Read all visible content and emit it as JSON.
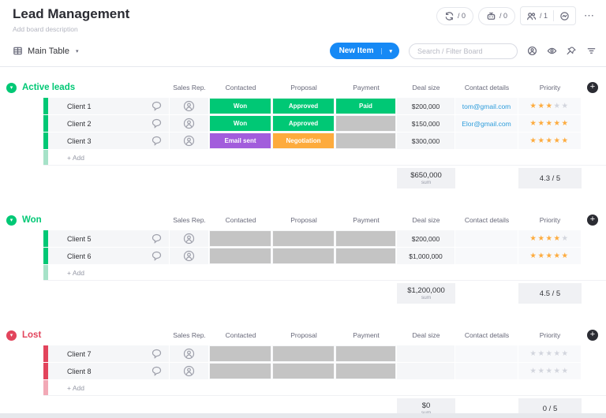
{
  "header": {
    "title": "Lead Management",
    "description": "Add board description",
    "integrations_count": "/ 0",
    "automations_count": "/ 0",
    "people_count": "/ 1"
  },
  "tabbar": {
    "main_table": "Main Table"
  },
  "toolbar": {
    "new_item": "New Item",
    "search_placeholder": "Search / Filter Board"
  },
  "columns": [
    "Sales Rep.",
    "Contacted",
    "Proposal",
    "Payment",
    "Deal size",
    "Contact details",
    "Priority"
  ],
  "labels": {
    "add": "+ Add",
    "sum_unit": "sum"
  },
  "icons": {
    "menu": "⋯",
    "chevron_down": "▾",
    "plus": "+",
    "star": "★"
  },
  "colors": {
    "status_green": "#00c875",
    "status_purple": "#a25ddc",
    "status_orange": "#fdab3d",
    "status_gray": "#c4c4c4",
    "group_green": "#00c875",
    "group_red": "#e2445c",
    "accent_blue": "#1689f5",
    "link_blue": "#2d9cdb",
    "star_filled": "#fdab3d"
  },
  "groups": [
    {
      "name": "Active leads",
      "color": "#00c875",
      "color_light": "#a6e2c8",
      "rows": [
        {
          "name": "Client 1",
          "contacted": {
            "label": "Won",
            "color": "#00c875"
          },
          "proposal": {
            "label": "Approved",
            "color": "#00c875"
          },
          "payment": {
            "label": "Paid",
            "color": "#00c875"
          },
          "deal_size": "$200,000",
          "contact": "tom@gmail.com",
          "priority": 3
        },
        {
          "name": "Client 2",
          "contacted": {
            "label": "Won",
            "color": "#00c875"
          },
          "proposal": {
            "label": "Approved",
            "color": "#00c875"
          },
          "payment": {
            "label": "",
            "color": "#c4c4c4"
          },
          "deal_size": "$150,000",
          "contact": "Elor@gmail.com",
          "priority": 5
        },
        {
          "name": "Client 3",
          "contacted": {
            "label": "Email sent",
            "color": "#a25ddc"
          },
          "proposal": {
            "label": "Negotiation",
            "color": "#fdab3d"
          },
          "payment": {
            "label": "",
            "color": "#c4c4c4"
          },
          "deal_size": "$300,000",
          "contact": "",
          "priority": 5
        }
      ],
      "sum": {
        "deal_size": "$650,000",
        "priority": "4.3 / 5"
      }
    },
    {
      "name": "Won",
      "color": "#00c875",
      "color_light": "#a6e2c8",
      "rows": [
        {
          "name": "Client 5",
          "contacted": {
            "label": "",
            "color": "#c4c4c4"
          },
          "proposal": {
            "label": "",
            "color": "#c4c4c4"
          },
          "payment": {
            "label": "",
            "color": "#c4c4c4"
          },
          "deal_size": "$200,000",
          "contact": "",
          "priority": 4
        },
        {
          "name": "Client 6",
          "contacted": {
            "label": "",
            "color": "#c4c4c4"
          },
          "proposal": {
            "label": "",
            "color": "#c4c4c4"
          },
          "payment": {
            "label": "",
            "color": "#c4c4c4"
          },
          "deal_size": "$1,000,000",
          "contact": "",
          "priority": 5
        }
      ],
      "sum": {
        "deal_size": "$1,200,000",
        "priority": "4.5 / 5"
      }
    },
    {
      "name": "Lost",
      "color": "#e2445c",
      "color_light": "#f2a9b6",
      "rows": [
        {
          "name": "Client 7",
          "contacted": {
            "label": "",
            "color": "#c4c4c4"
          },
          "proposal": {
            "label": "",
            "color": "#c4c4c4"
          },
          "payment": {
            "label": "",
            "color": "#c4c4c4"
          },
          "deal_size": "",
          "contact": "",
          "priority": 0
        },
        {
          "name": "Client 8",
          "contacted": {
            "label": "",
            "color": "#c4c4c4"
          },
          "proposal": {
            "label": "",
            "color": "#c4c4c4"
          },
          "payment": {
            "label": "",
            "color": "#c4c4c4"
          },
          "deal_size": "",
          "contact": "",
          "priority": 0
        }
      ],
      "sum": {
        "deal_size": "$0",
        "priority": "0 / 5"
      }
    }
  ]
}
